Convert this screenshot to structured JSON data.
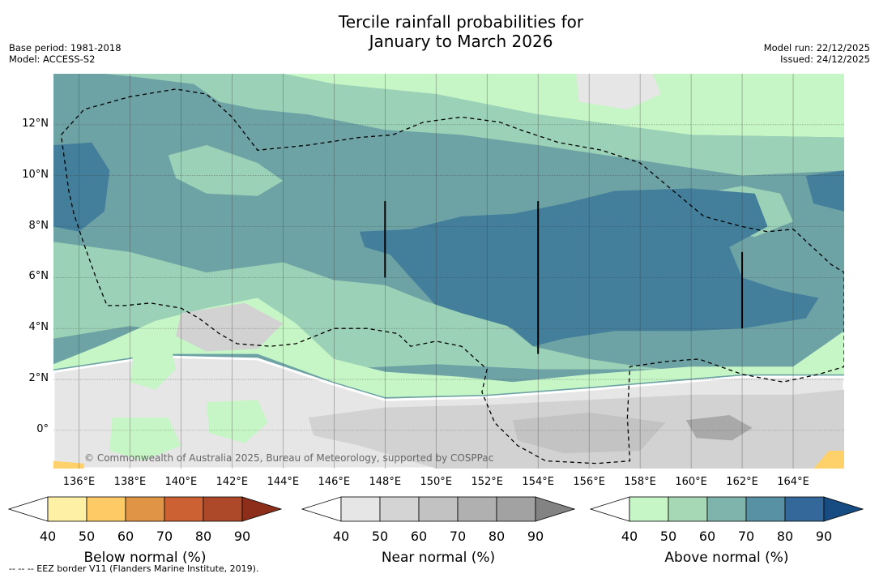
{
  "title": "Tercile rainfall probabilities for\nJanuary to March 2026",
  "base_period": "Base period: 1981-2018",
  "model": "Model: ACCESS-S2",
  "model_run": "Model run: 22/12/2025",
  "issued": "Issued: 24/12/2025",
  "copyright": "© Commonwealth of Australia 2025, Bureau of Meteorology, supported by COSPPac",
  "eez_note": "--  --  -- EEZ border V11 (Flanders Marine Institute, 2019).",
  "colors": {
    "ocean_base": "#6ea3a6",
    "above_50": "#c6f5c6",
    "above_60": "#9bd1b6",
    "above_70": "#6ea3a6",
    "above_80": "#437e9b",
    "near_50": "#e6e6e6",
    "near_60": "#d2d2d2",
    "near_70": "#c3c3c3",
    "near_80": "#a9a9a9",
    "below_50": "#fed16b"
  },
  "chart_data": {
    "type": "map",
    "title": "Tercile rainfall probabilities for January to March 2026",
    "lon_range": [
      135,
      166
    ],
    "lat_range": [
      -1.5,
      14
    ],
    "lat_ticks": [
      {
        "value": 12,
        "label": "12°N"
      },
      {
        "value": 10,
        "label": "10°N"
      },
      {
        "value": 8,
        "label": "8°N"
      },
      {
        "value": 6,
        "label": "6°N"
      },
      {
        "value": 4,
        "label": "4°N"
      },
      {
        "value": 2,
        "label": "2°N"
      },
      {
        "value": 0,
        "label": "0°"
      }
    ],
    "lon_ticks": [
      {
        "value": 136,
        "label": "136°E"
      },
      {
        "value": 138,
        "label": "138°E"
      },
      {
        "value": 140,
        "label": "140°E"
      },
      {
        "value": 142,
        "label": "142°E"
      },
      {
        "value": 144,
        "label": "144°E"
      },
      {
        "value": 146,
        "label": "146°E"
      },
      {
        "value": 148,
        "label": "148°E"
      },
      {
        "value": 150,
        "label": "150°E"
      },
      {
        "value": 152,
        "label": "152°E"
      },
      {
        "value": 154,
        "label": "154°E"
      },
      {
        "value": 156,
        "label": "156°E"
      },
      {
        "value": 158,
        "label": "158°E"
      },
      {
        "value": 160,
        "label": "160°E"
      },
      {
        "value": 162,
        "label": "162°E"
      },
      {
        "value": 164,
        "label": "164°E"
      }
    ],
    "regions": [
      {
        "name": "north-strip-above-50",
        "fill": "above_50",
        "points": [
          [
            135,
            14
          ],
          [
            166,
            14
          ],
          [
            166,
            11.5
          ],
          [
            160,
            11.6
          ],
          [
            154,
            12.4
          ],
          [
            150,
            13.2
          ],
          [
            146,
            13.6
          ],
          [
            144,
            14
          ]
        ]
      },
      {
        "name": "north-band-above-60",
        "fill": "above_60",
        "points": [
          [
            144,
            14
          ],
          [
            146,
            13.6
          ],
          [
            150,
            13.2
          ],
          [
            154,
            12.4
          ],
          [
            160,
            11.6
          ],
          [
            166,
            11.5
          ],
          [
            166,
            10.2
          ],
          [
            162,
            10
          ],
          [
            158,
            10.6
          ],
          [
            154,
            11.2
          ],
          [
            151,
            11.6
          ],
          [
            148,
            11.8
          ],
          [
            145,
            12.4
          ],
          [
            143,
            12.6
          ],
          [
            141.5,
            12.9
          ],
          [
            140.5,
            13.6
          ],
          [
            138,
            13.9
          ],
          [
            137,
            14
          ]
        ]
      },
      {
        "name": "north-light-patch",
        "fill": "near_50",
        "points": [
          [
            155.5,
            14
          ],
          [
            158.5,
            14
          ],
          [
            158.8,
            13.2
          ],
          [
            157.5,
            12.6
          ],
          [
            155.6,
            12.9
          ]
        ]
      },
      {
        "name": "northwest-patch-above-60",
        "fill": "above_60",
        "points": [
          [
            139.5,
            10.8
          ],
          [
            141,
            11.2
          ],
          [
            143,
            10.5
          ],
          [
            144,
            9.8
          ],
          [
            143,
            9.2
          ],
          [
            141,
            9.3
          ],
          [
            139.8,
            9.9
          ]
        ]
      },
      {
        "name": "east-patch-above-60",
        "fill": "above_60",
        "points": [
          [
            160,
            9.2
          ],
          [
            162,
            9.6
          ],
          [
            163.5,
            9.3
          ],
          [
            164,
            8.2
          ],
          [
            162.5,
            7.6
          ],
          [
            160.5,
            8
          ],
          [
            159.8,
            8.7
          ]
        ]
      },
      {
        "name": "west-patch-above-80",
        "fill": "above_80",
        "points": [
          [
            135,
            11.2
          ],
          [
            136.5,
            11.3
          ],
          [
            137.2,
            10.2
          ],
          [
            137,
            8.6
          ],
          [
            136,
            7.8
          ],
          [
            135,
            8
          ]
        ]
      },
      {
        "name": "central-core-above-80",
        "fill": "above_80",
        "points": [
          [
            147,
            7.8
          ],
          [
            149,
            7.9
          ],
          [
            151,
            8.4
          ],
          [
            153,
            8.5
          ],
          [
            155,
            8.9
          ],
          [
            157,
            9.4
          ],
          [
            160,
            9.5
          ],
          [
            162.5,
            9.3
          ],
          [
            163,
            8
          ],
          [
            161.5,
            7.2
          ],
          [
            162,
            6
          ],
          [
            163.5,
            5.5
          ],
          [
            165,
            5.2
          ],
          [
            164.5,
            4.4
          ],
          [
            162,
            4
          ],
          [
            160,
            3.9
          ],
          [
            157,
            3.9
          ],
          [
            155,
            3.6
          ],
          [
            153.8,
            3.3
          ],
          [
            153,
            4
          ],
          [
            151.5,
            4.4
          ],
          [
            150,
            4.9
          ],
          [
            149,
            6
          ],
          [
            148.2,
            6.9
          ],
          [
            147.2,
            7.2
          ]
        ]
      },
      {
        "name": "east-edge-above-80",
        "fill": "above_80",
        "points": [
          [
            164.5,
            10
          ],
          [
            166,
            10.2
          ],
          [
            166,
            8.6
          ],
          [
            164.8,
            8.9
          ]
        ]
      },
      {
        "name": "southwest-band-above-60",
        "fill": "above_60",
        "points": [
          [
            135,
            7.4
          ],
          [
            138,
            7
          ],
          [
            141,
            6.2
          ],
          [
            144,
            6.6
          ],
          [
            146,
            5.9
          ],
          [
            148,
            5.7
          ],
          [
            149.5,
            5.1
          ],
          [
            151,
            4.6
          ],
          [
            152.8,
            4.1
          ],
          [
            153.8,
            3.3
          ],
          [
            156,
            2.8
          ],
          [
            158,
            2.5
          ],
          [
            160,
            2.3
          ],
          [
            162,
            2.3
          ],
          [
            164,
            2.4
          ],
          [
            166,
            3.8
          ],
          [
            166,
            2.4
          ],
          [
            160,
            2.4
          ],
          [
            154,
            2.4
          ],
          [
            150,
            2.6
          ],
          [
            146,
            2.4
          ],
          [
            142,
            3.6
          ],
          [
            138,
            4.1
          ],
          [
            135,
            3.6
          ]
        ]
      },
      {
        "name": "south-strip-above-50",
        "fill": "above_50",
        "points": [
          [
            135,
            2.6
          ],
          [
            137,
            3.4
          ],
          [
            139,
            4.3
          ],
          [
            141,
            4.8
          ],
          [
            143,
            5.2
          ],
          [
            144.5,
            4.2
          ],
          [
            146,
            2.8
          ],
          [
            148,
            2.3
          ],
          [
            151,
            2.1
          ],
          [
            153,
            1.9
          ],
          [
            156,
            2.2
          ],
          [
            160,
            2.5
          ],
          [
            164,
            2.5
          ],
          [
            166,
            3.9
          ],
          [
            166,
            2.2
          ],
          [
            162,
            2.2
          ],
          [
            156,
            1.7
          ],
          [
            152,
            1.4
          ],
          [
            148,
            1.3
          ],
          [
            146,
            1.9
          ],
          [
            143,
            3
          ],
          [
            139,
            3
          ],
          [
            135,
            2.4
          ]
        ]
      },
      {
        "name": "south-near-normal-50",
        "fill": "near_50",
        "points": [
          [
            135,
            2.3
          ],
          [
            139,
            2.9
          ],
          [
            143,
            2.8
          ],
          [
            146,
            1.8
          ],
          [
            148,
            1.2
          ],
          [
            152,
            1.3
          ],
          [
            156,
            1.6
          ],
          [
            162,
            2.1
          ],
          [
            166,
            2.1
          ],
          [
            166,
            -1.5
          ],
          [
            135,
            -1.5
          ]
        ]
      },
      {
        "name": "south-near-normal-60a",
        "fill": "near_60",
        "points": [
          [
            140,
            4.6
          ],
          [
            142.5,
            5
          ],
          [
            144,
            4.2
          ],
          [
            143,
            3.2
          ],
          [
            141,
            3.1
          ],
          [
            139.8,
            3.7
          ]
        ]
      },
      {
        "name": "south-near-normal-60b",
        "fill": "near_60",
        "points": [
          [
            145,
            0.5
          ],
          [
            148,
            0.9
          ],
          [
            152,
            1
          ],
          [
            156,
            1.2
          ],
          [
            160,
            1.4
          ],
          [
            164,
            1.4
          ],
          [
            166,
            1.6
          ],
          [
            166,
            -1.5
          ],
          [
            150,
            -1.5
          ],
          [
            147,
            -0.6
          ],
          [
            145.2,
            -0.2
          ]
        ]
      },
      {
        "name": "south-near-normal-70",
        "fill": "near_70",
        "points": [
          [
            153,
            0.4
          ],
          [
            156,
            0.7
          ],
          [
            159,
            0.3
          ],
          [
            158,
            -0.8
          ],
          [
            155,
            -0.9
          ],
          [
            153.2,
            -0.4
          ]
        ]
      },
      {
        "name": "south-near-normal-80",
        "fill": "near_80",
        "points": [
          [
            159.8,
            0.4
          ],
          [
            161.5,
            0.6
          ],
          [
            162.4,
            0.1
          ],
          [
            161.6,
            -0.4
          ],
          [
            160.2,
            -0.3
          ]
        ]
      },
      {
        "name": "southwest-green-patch-1",
        "fill": "above_50",
        "points": [
          [
            138.2,
            3.7
          ],
          [
            139.5,
            3.8
          ],
          [
            139.8,
            2.4
          ],
          [
            139,
            1.6
          ],
          [
            138,
            1.9
          ]
        ]
      },
      {
        "name": "southwest-green-patch-2",
        "fill": "above_50",
        "points": [
          [
            137.3,
            0.5
          ],
          [
            139.5,
            0.5
          ],
          [
            140,
            -0.6
          ],
          [
            138.5,
            -1.2
          ],
          [
            137.2,
            -0.8
          ]
        ]
      },
      {
        "name": "southwest-green-patch-3",
        "fill": "above_50",
        "points": [
          [
            141,
            1.1
          ],
          [
            143,
            1.2
          ],
          [
            143.4,
            0.3
          ],
          [
            142.5,
            -0.5
          ],
          [
            141.1,
            -0.1
          ]
        ]
      },
      {
        "name": "southwest-corner-below-50",
        "fill": "below_50",
        "points": [
          [
            135,
            -1.2
          ],
          [
            136.2,
            -1.3
          ],
          [
            136.2,
            -1.5
          ],
          [
            135,
            -1.5
          ]
        ]
      },
      {
        "name": "southeast-corner-below-50",
        "fill": "below_50",
        "points": [
          [
            164.8,
            -1.5
          ],
          [
            166,
            -1.5
          ],
          [
            166,
            -0.8
          ],
          [
            165.4,
            -0.8
          ]
        ]
      }
    ],
    "eez_border": [
      [
        135.3,
        11.6
      ],
      [
        136.2,
        12.6
      ],
      [
        138,
        13.1
      ],
      [
        139.8,
        13.4
      ],
      [
        141,
        13.2
      ],
      [
        142,
        12.3
      ],
      [
        143,
        11
      ],
      [
        145,
        11.2
      ],
      [
        147,
        11.5
      ],
      [
        148.3,
        11.6
      ],
      [
        149.5,
        12.1
      ],
      [
        151,
        12.3
      ],
      [
        152.5,
        12.1
      ],
      [
        153.3,
        11.8
      ],
      [
        154.8,
        11.3
      ],
      [
        156.5,
        11
      ],
      [
        158,
        10.5
      ],
      [
        159.3,
        9.4
      ],
      [
        160.5,
        8.4
      ],
      [
        162,
        8
      ],
      [
        163,
        7.8
      ],
      [
        164,
        7.9
      ],
      [
        165.5,
        6.5
      ],
      [
        166,
        6.2
      ],
      [
        166,
        2.5
      ],
      [
        165,
        2.2
      ],
      [
        163.6,
        1.9
      ],
      [
        162,
        2.2
      ],
      [
        160.3,
        2.8
      ],
      [
        159,
        2.7
      ],
      [
        157.6,
        2.5
      ],
      [
        157.5,
        0.5
      ],
      [
        157.6,
        -1.2
      ],
      [
        156.3,
        -1.3
      ],
      [
        154.3,
        -1.2
      ],
      [
        153.2,
        -0.6
      ],
      [
        152.3,
        0.3
      ],
      [
        151.8,
        1.5
      ],
      [
        152,
        2.4
      ],
      [
        151,
        3.3
      ],
      [
        150,
        3.5
      ],
      [
        149,
        3.3
      ],
      [
        148.5,
        3.8
      ],
      [
        147.3,
        4
      ],
      [
        146,
        4
      ],
      [
        145,
        3.6
      ],
      [
        144.5,
        3.4
      ],
      [
        143.5,
        3.3
      ],
      [
        142.2,
        3.4
      ],
      [
        141.5,
        3.8
      ],
      [
        140.7,
        4.4
      ],
      [
        140,
        4.8
      ],
      [
        138.8,
        5
      ],
      [
        137.8,
        4.9
      ],
      [
        137.1,
        4.9
      ],
      [
        136.7,
        5.9
      ],
      [
        136.2,
        7.3
      ],
      [
        135.8,
        8.5
      ],
      [
        135.6,
        9.4
      ],
      [
        135.3,
        11.6
      ]
    ],
    "black_lines": [
      {
        "lon": 148,
        "lat_from": 6,
        "lat_to": 9
      },
      {
        "lon": 154,
        "lat_from": 3,
        "lat_to": 9
      },
      {
        "lon": 162,
        "lat_from": 4,
        "lat_to": 7
      }
    ]
  },
  "colorbars": [
    {
      "title": "Below normal (%)",
      "ticks": [
        "40",
        "50",
        "60",
        "70",
        "80",
        "90"
      ],
      "colors": [
        "#fef0a4",
        "#fdca66",
        "#e09446",
        "#cc6133",
        "#ad4928",
        "#8d2e1a"
      ]
    },
    {
      "title": "Near normal (%)",
      "ticks": [
        "40",
        "50",
        "60",
        "70",
        "80",
        "90"
      ],
      "colors": [
        "#e6e6e6",
        "#d4d4d4",
        "#c2c2c2",
        "#b0b0b0",
        "#a2a2a2",
        "#838383"
      ]
    },
    {
      "title": "Above normal (%)",
      "ticks": [
        "40",
        "50",
        "60",
        "70",
        "80",
        "90"
      ],
      "colors": [
        "#c6f5c6",
        "#a6d8b6",
        "#7eb4ab",
        "#5791a3",
        "#35689a",
        "#174c82"
      ]
    }
  ]
}
